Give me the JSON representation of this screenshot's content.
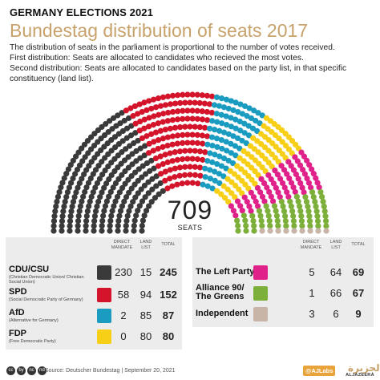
{
  "header": {
    "kicker": "GERMANY ELECTIONS 2021",
    "title": "Bundestag distribution of seats 2017",
    "desc1": "The distribution of seats in the parliament is proportional to the number of votes received.",
    "desc2": "First distribution: Seats are allocated to candidates who recieved the most votes.",
    "desc3": "Second distribution: Seats are allocated to candidates based on the party list, in that specific constituency (land list)."
  },
  "total": {
    "value": "709",
    "label": "SEATS"
  },
  "columns": {
    "direct": "DIRECT MANDATE",
    "land": "LAND LIST",
    "total": "TOTAL"
  },
  "chart_data": {
    "type": "parliament",
    "total_seats": 709,
    "parties": [
      {
        "name": "CDU/CSU",
        "subtitle": "(Christian Democratic Union/ Christian Social Union)",
        "color": "#3a3a3a",
        "direct": 230,
        "land": 15,
        "total": 245
      },
      {
        "name": "SPD",
        "subtitle": "(Social Democratic Party of Germany)",
        "color": "#d4142a",
        "direct": 58,
        "land": 94,
        "total": 152
      },
      {
        "name": "AfD",
        "subtitle": "(Alternative for Germany)",
        "color": "#1a9bc0",
        "direct": 2,
        "land": 85,
        "total": 87
      },
      {
        "name": "FDP",
        "subtitle": "(Free Democratic Party)",
        "color": "#f6cf16",
        "direct": 0,
        "land": 80,
        "total": 80
      },
      {
        "name": "The Left Party",
        "subtitle": "",
        "color": "#e0218a",
        "direct": 5,
        "land": 64,
        "total": 69
      },
      {
        "name": "Alliance 90/ The Greens",
        "subtitle": "",
        "color": "#7daf3b",
        "direct": 1,
        "land": 66,
        "total": 67
      },
      {
        "name": "Independent",
        "subtitle": "",
        "color": "#c8b5a8",
        "direct": 3,
        "land": 6,
        "total": 9
      }
    ]
  },
  "footer": {
    "cc": [
      "cc",
      "by",
      "nc",
      "nd"
    ],
    "source": "Source: Deutscher Bundestag | September 20, 2021",
    "handle": "@AJLabs",
    "brand": "الجزيرة",
    "brand_sub": "ALJAZEERA"
  }
}
